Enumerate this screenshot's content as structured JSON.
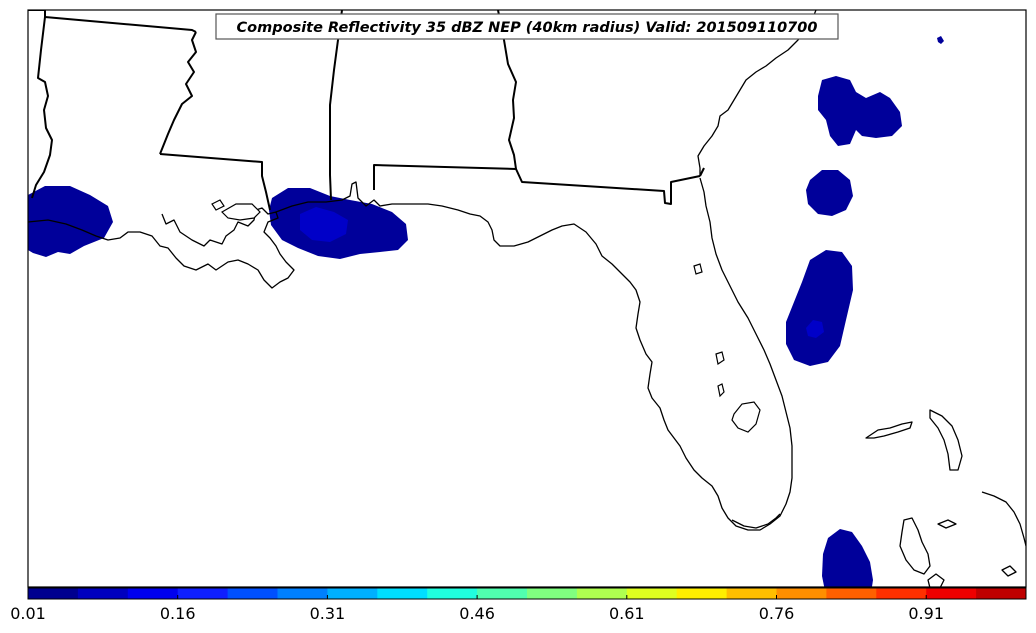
{
  "title": "Composite Reflectivity 35 dBZ NEP (40km radius) Valid: 201509110700",
  "colorbar": {
    "tick_labels": [
      "0.01",
      "0.16",
      "0.31",
      "0.46",
      "0.61",
      "0.76",
      "0.91"
    ],
    "colors": [
      "#00008f",
      "#0000bf",
      "#0000ef",
      "#0f1fff",
      "#0050ff",
      "#0080ff",
      "#00b0ff",
      "#00dfff",
      "#20ffdf",
      "#50ffaf",
      "#80ff80",
      "#afff50",
      "#dfff20",
      "#ffef00",
      "#ffbf00",
      "#ff8f00",
      "#ff6000",
      "#ff3000",
      "#ef0000",
      "#bf0000"
    ]
  },
  "probability_areas": [
    {
      "name": "louisiana-west-area",
      "color": "#00009a"
    },
    {
      "name": "gulf-coast-ms-area",
      "color": "#00009a",
      "core_color": "#0000c8"
    },
    {
      "name": "atlantic-north-area",
      "color": "#00009a"
    },
    {
      "name": "atlantic-mid-area",
      "color": "#00009a"
    },
    {
      "name": "atlantic-south-area",
      "color": "#00009a",
      "core_color": "#0000c8"
    },
    {
      "name": "bahamas-area",
      "color": "#00009a"
    },
    {
      "name": "atlantic-speck-area",
      "color": "#00009a"
    }
  ]
}
